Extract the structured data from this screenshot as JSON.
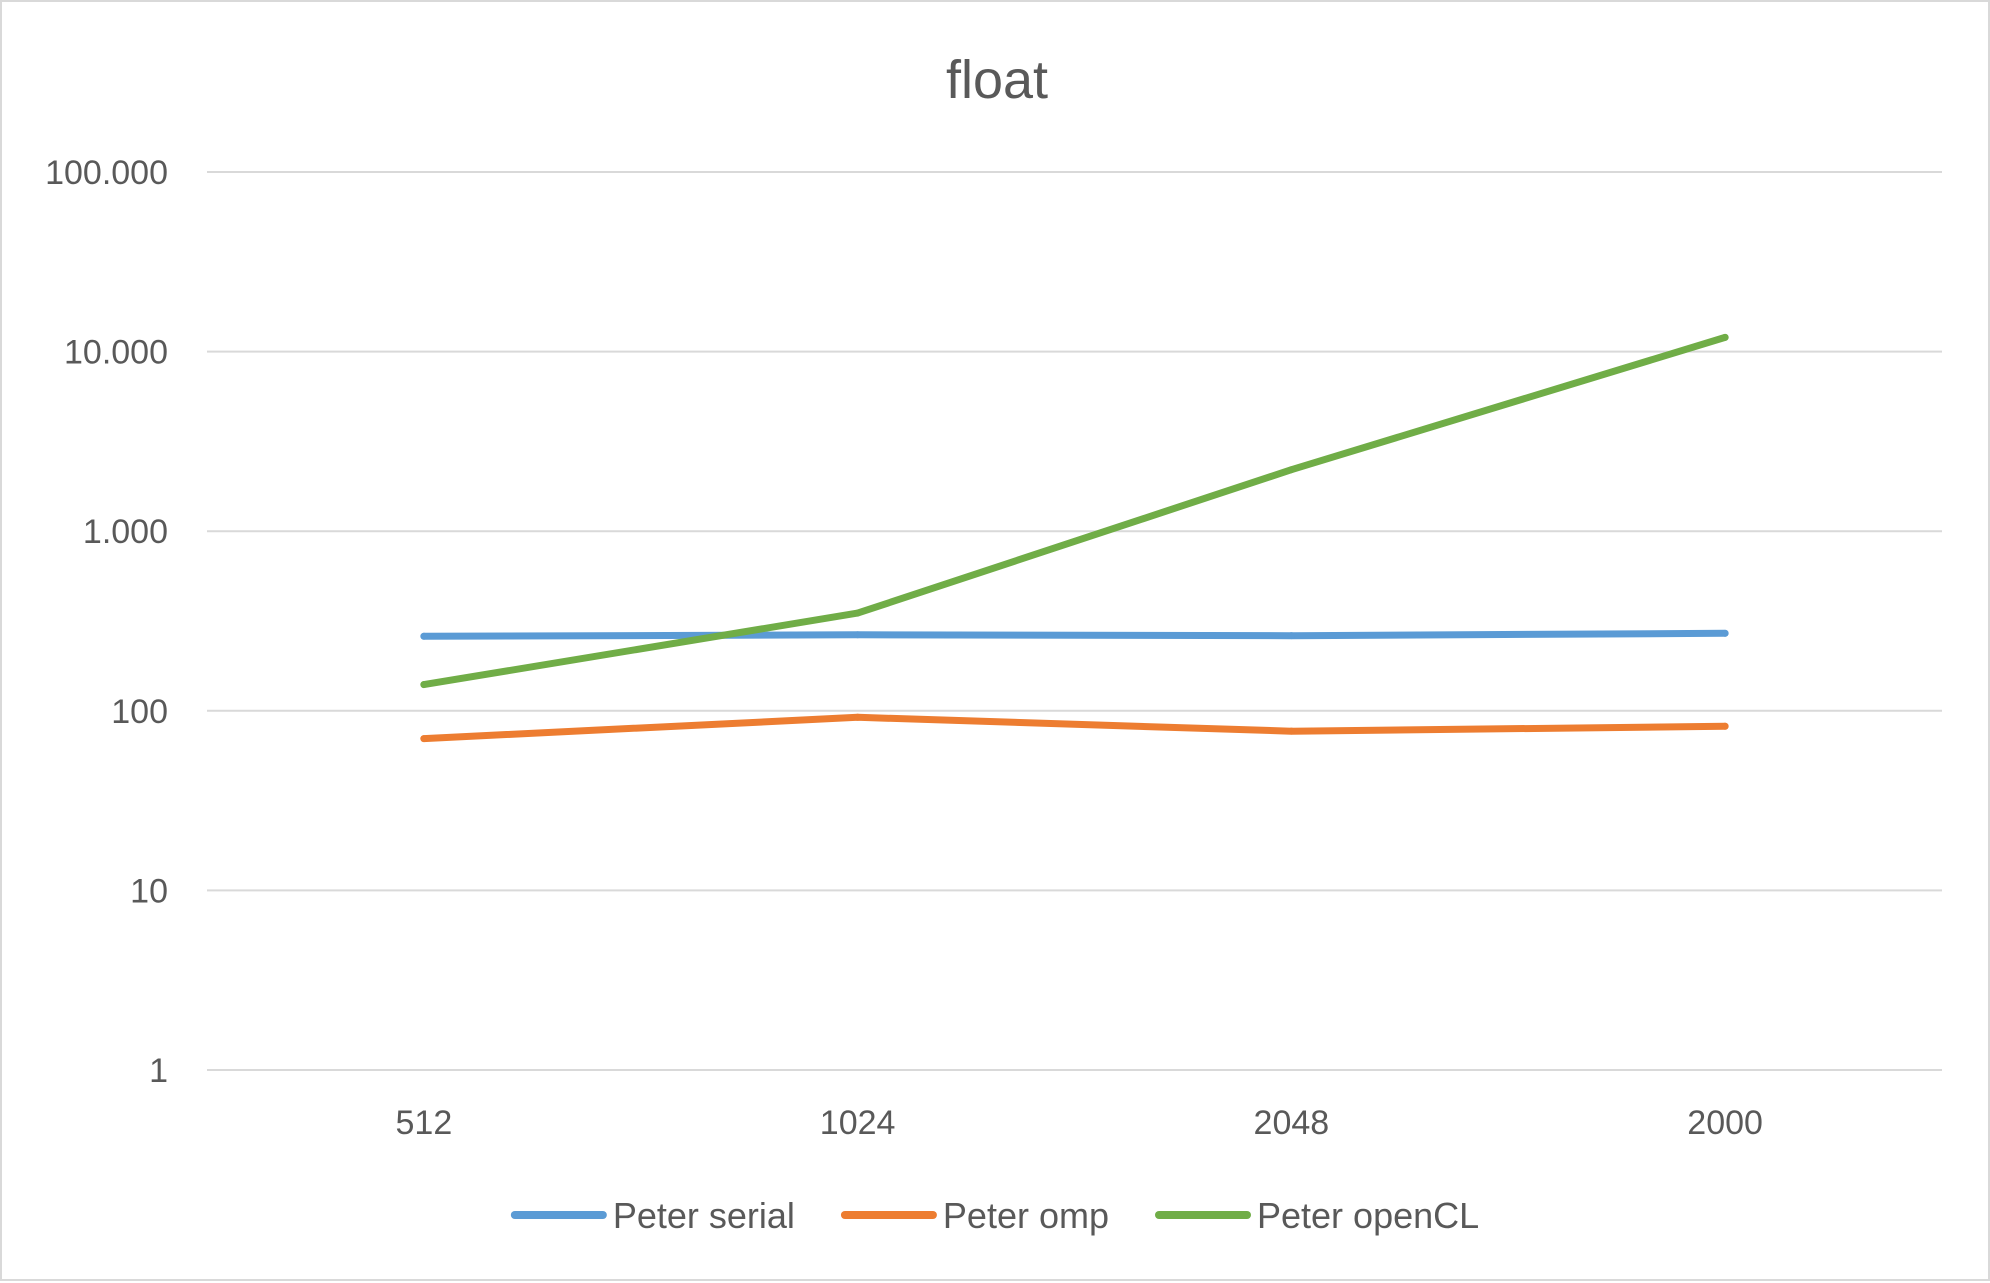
{
  "chart_data": {
    "type": "line",
    "title": "float",
    "xlabel": "",
    "ylabel": "",
    "categories": [
      "512",
      "1024",
      "2048",
      "2000"
    ],
    "y_scale": "log10",
    "ylim": [
      1,
      100000
    ],
    "y_ticks": [
      1,
      10,
      100,
      1000,
      10000,
      100000
    ],
    "y_tick_labels": [
      "1",
      "10",
      "100",
      "1.000",
      "10.000",
      "100.000"
    ],
    "grid": true,
    "legend_position": "bottom",
    "series": [
      {
        "name": "Peter serial",
        "color": "#5b9bd5",
        "values": [
          260,
          265,
          262,
          270
        ]
      },
      {
        "name": "Peter omp",
        "color": "#ed7d31",
        "values": [
          70,
          92,
          77,
          82
        ]
      },
      {
        "name": "Peter openCL",
        "color": "#70ad47",
        "values": [
          140,
          350,
          2200,
          12000
        ]
      }
    ]
  }
}
